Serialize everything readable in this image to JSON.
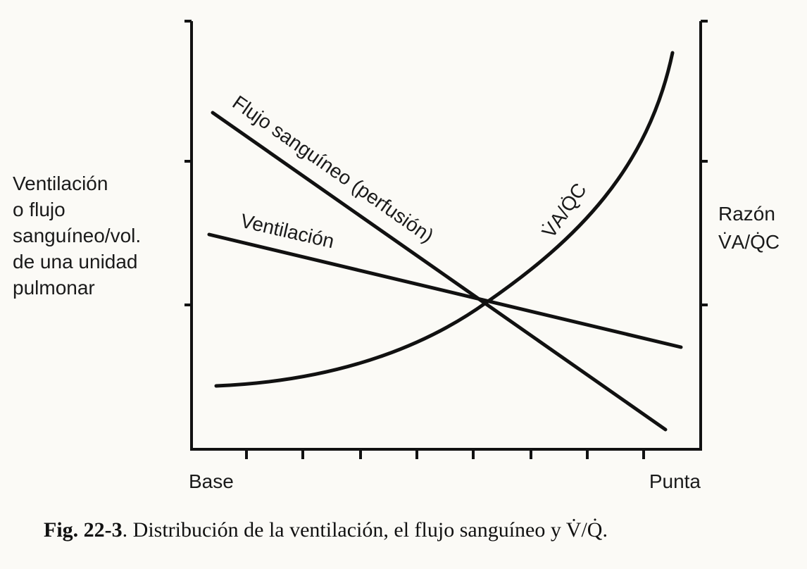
{
  "figure": {
    "left_axis_label": [
      "Ventilación",
      "o flujo",
      "sanguíneo/vol.",
      "de una unidad",
      "pulmonar"
    ],
    "right_axis_label": [
      "Razón",
      "V̇A/Q̇C"
    ],
    "x_axis_labels": [
      "Base",
      "Punta"
    ],
    "curve_labels": {
      "perfusion": "Flujo sanguíneo (perfusión)",
      "ventilation": "Ventilación",
      "ratio": "V̇A/Q̇C"
    },
    "caption": {
      "number": "Fig. 22-3",
      "text": ". Distribución de la ventilación, el flujo sanguíneo y V̇/Q̇."
    }
  }
}
